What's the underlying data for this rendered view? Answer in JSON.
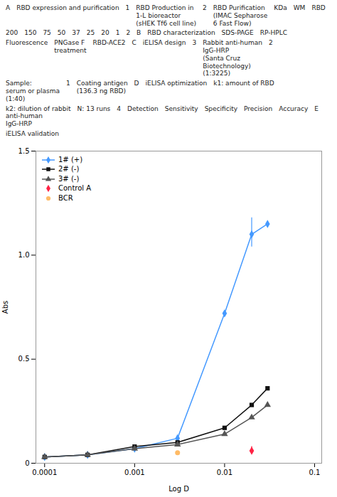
{
  "chart_data": {
    "type": "line",
    "annotations": [
      "A",
      "RBD expression and purification",
      "1",
      "RBD Production in\n1-L bioreactor\n(sHEK Tf6 cell line)",
      "2",
      "RBD Purification\n(IMAC Sepharose\n6 Fast Flow)",
      "KDa",
      "WM",
      "RBD",
      "200",
      "150",
      "75",
      "50",
      "37",
      "25",
      "20",
      "1",
      "2",
      "B",
      "RBD characterization",
      "SDS-PAGE",
      "RP-HPLC",
      "Fluorescence",
      "PNGase F\ntreatment",
      "RBD-ACE2",
      "C",
      "iELISA design",
      "3",
      "Rabbit anti-human\nIgG-HRP\n(Santa Cruz\nBiotechnology)\n(1:3225)",
      "2",
      "Sample:\nserum or plasma\n(1:40)",
      "1",
      "Coating antigen\n(136.3 ng RBD)",
      "D",
      "iELISA optimization",
      "k1: amount of RBD",
      "k2: dilution of rabbit\nanti-human\nIgG-HRP",
      "N: 13 runs",
      "4",
      "Detection",
      "Sensitivity",
      "Specificity",
      "Precision",
      "Accuracy",
      "E",
      "iELISA validation"
    ],
    "x_label": "Log D",
    "y_label": "Abs",
    "log": "x",
    "xlim": [
      8e-05,
      0.12
    ],
    "xticks": [
      0.0001,
      0.001,
      0.01,
      0.1
    ],
    "ylim": [
      0,
      1.5
    ],
    "yticks": [
      0,
      0.5,
      {
        "value": 1,
        "label": "1.0"
      },
      1.5
    ],
    "grid": false,
    "legend": "upper left",
    "series": [
      {
        "name": "1# (+)",
        "type": "line",
        "color": "#4499FF",
        "marker": "diamond",
        "x": [
          0.0001,
          0.0003,
          0.001,
          0.003,
          0.01,
          0.02,
          0.03
        ],
        "values": [
          0.03,
          0.04,
          0.07,
          0.12,
          0.72,
          1.1,
          1.15
        ],
        "error_minus": [
          null,
          null,
          null,
          null,
          null,
          0.06,
          null
        ],
        "error_plus": [
          null,
          null,
          null,
          null,
          null,
          0.08,
          null
        ]
      },
      {
        "name": "2# (-)",
        "type": "line",
        "color": "#111111",
        "marker": "square",
        "x": [
          0.0001,
          0.0003,
          0.001,
          0.003,
          0.01,
          0.02,
          0.03
        ],
        "values": [
          0.03,
          0.04,
          0.08,
          0.1,
          0.17,
          0.28,
          0.36
        ]
      },
      {
        "name": "3# (-)",
        "type": "line",
        "color": "#555555",
        "marker": "triangle",
        "x": [
          0.0001,
          0.0003,
          0.001,
          0.003,
          0.01,
          0.02,
          0.03
        ],
        "values": [
          0.03,
          0.04,
          0.07,
          0.09,
          0.14,
          0.22,
          0.28
        ]
      },
      {
        "name": "Control A",
        "type": "scatter",
        "color": "#FF2244",
        "marker": "diamond",
        "x": [
          0.02
        ],
        "values": [
          0.06
        ],
        "error_minus": [
          0.01
        ],
        "error_plus": [
          0.02
        ]
      },
      {
        "name": "BCR",
        "type": "scatter",
        "color": "#FFBB66",
        "marker": "circle",
        "x": [
          0.003
        ],
        "values": [
          0.05
        ]
      }
    ]
  }
}
